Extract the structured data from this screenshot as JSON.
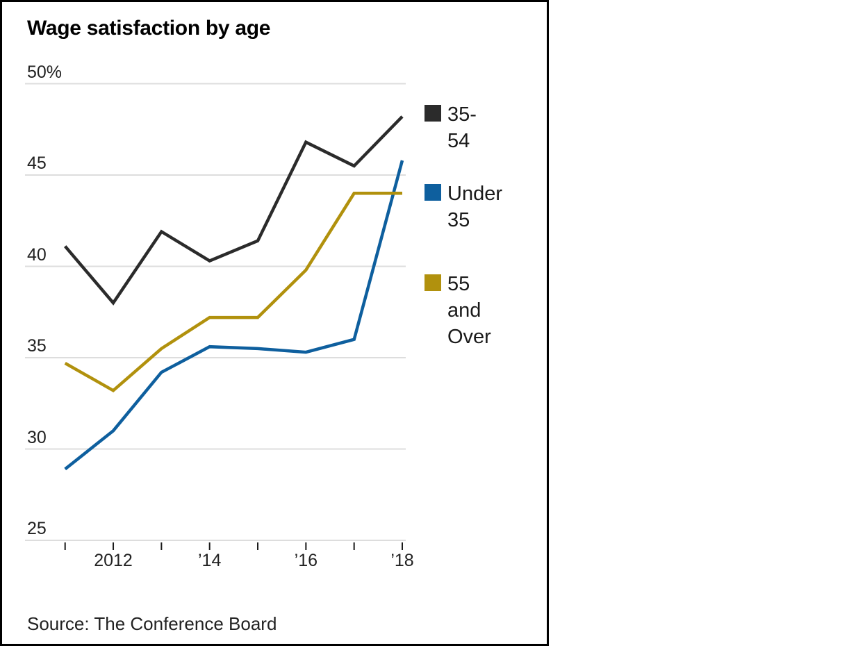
{
  "chart_data": {
    "type": "line",
    "title": "Wage satisfaction by age",
    "source": "Source: The Conference Board",
    "x": [
      2011,
      2012,
      2013,
      2014,
      2015,
      2016,
      2017,
      2018
    ],
    "series": [
      {
        "name": "35-54",
        "legend_lines": [
          "35-54"
        ],
        "color": "#2b2b2b",
        "values": [
          41.1,
          38.0,
          41.9,
          40.3,
          41.4,
          46.8,
          45.5,
          48.2
        ]
      },
      {
        "name": "Under 35",
        "legend_lines": [
          "Under",
          "35"
        ],
        "color": "#0e5f9e",
        "values": [
          28.9,
          31.0,
          34.2,
          35.6,
          35.5,
          35.3,
          36.0,
          45.8
        ]
      },
      {
        "name": "55 and Over",
        "legend_lines": [
          "55 and",
          "Over"
        ],
        "color": "#b1910d",
        "values": [
          34.7,
          33.2,
          35.5,
          37.2,
          37.2,
          39.8,
          44.0,
          44.0
        ]
      }
    ],
    "ylim": [
      25,
      50
    ],
    "yticks": [
      {
        "value": 50,
        "label": "50%"
      },
      {
        "value": 45,
        "label": "45"
      },
      {
        "value": 40,
        "label": "40"
      },
      {
        "value": 35,
        "label": "35"
      },
      {
        "value": 30,
        "label": "30"
      },
      {
        "value": 25,
        "label": "25"
      }
    ],
    "xticks": [
      {
        "year": 2011,
        "label": ""
      },
      {
        "year": 2012,
        "label": "2012"
      },
      {
        "year": 2013,
        "label": ""
      },
      {
        "year": 2014,
        "label": "’14"
      },
      {
        "year": 2015,
        "label": ""
      },
      {
        "year": 2016,
        "label": "’16"
      },
      {
        "year": 2017,
        "label": ""
      },
      {
        "year": 2018,
        "label": "’18"
      }
    ],
    "grid": true,
    "legend_position": "right"
  },
  "colors": {
    "gridline": "#dddddd",
    "axis_tick": "#1a1a1a",
    "card_border": "#000000"
  }
}
